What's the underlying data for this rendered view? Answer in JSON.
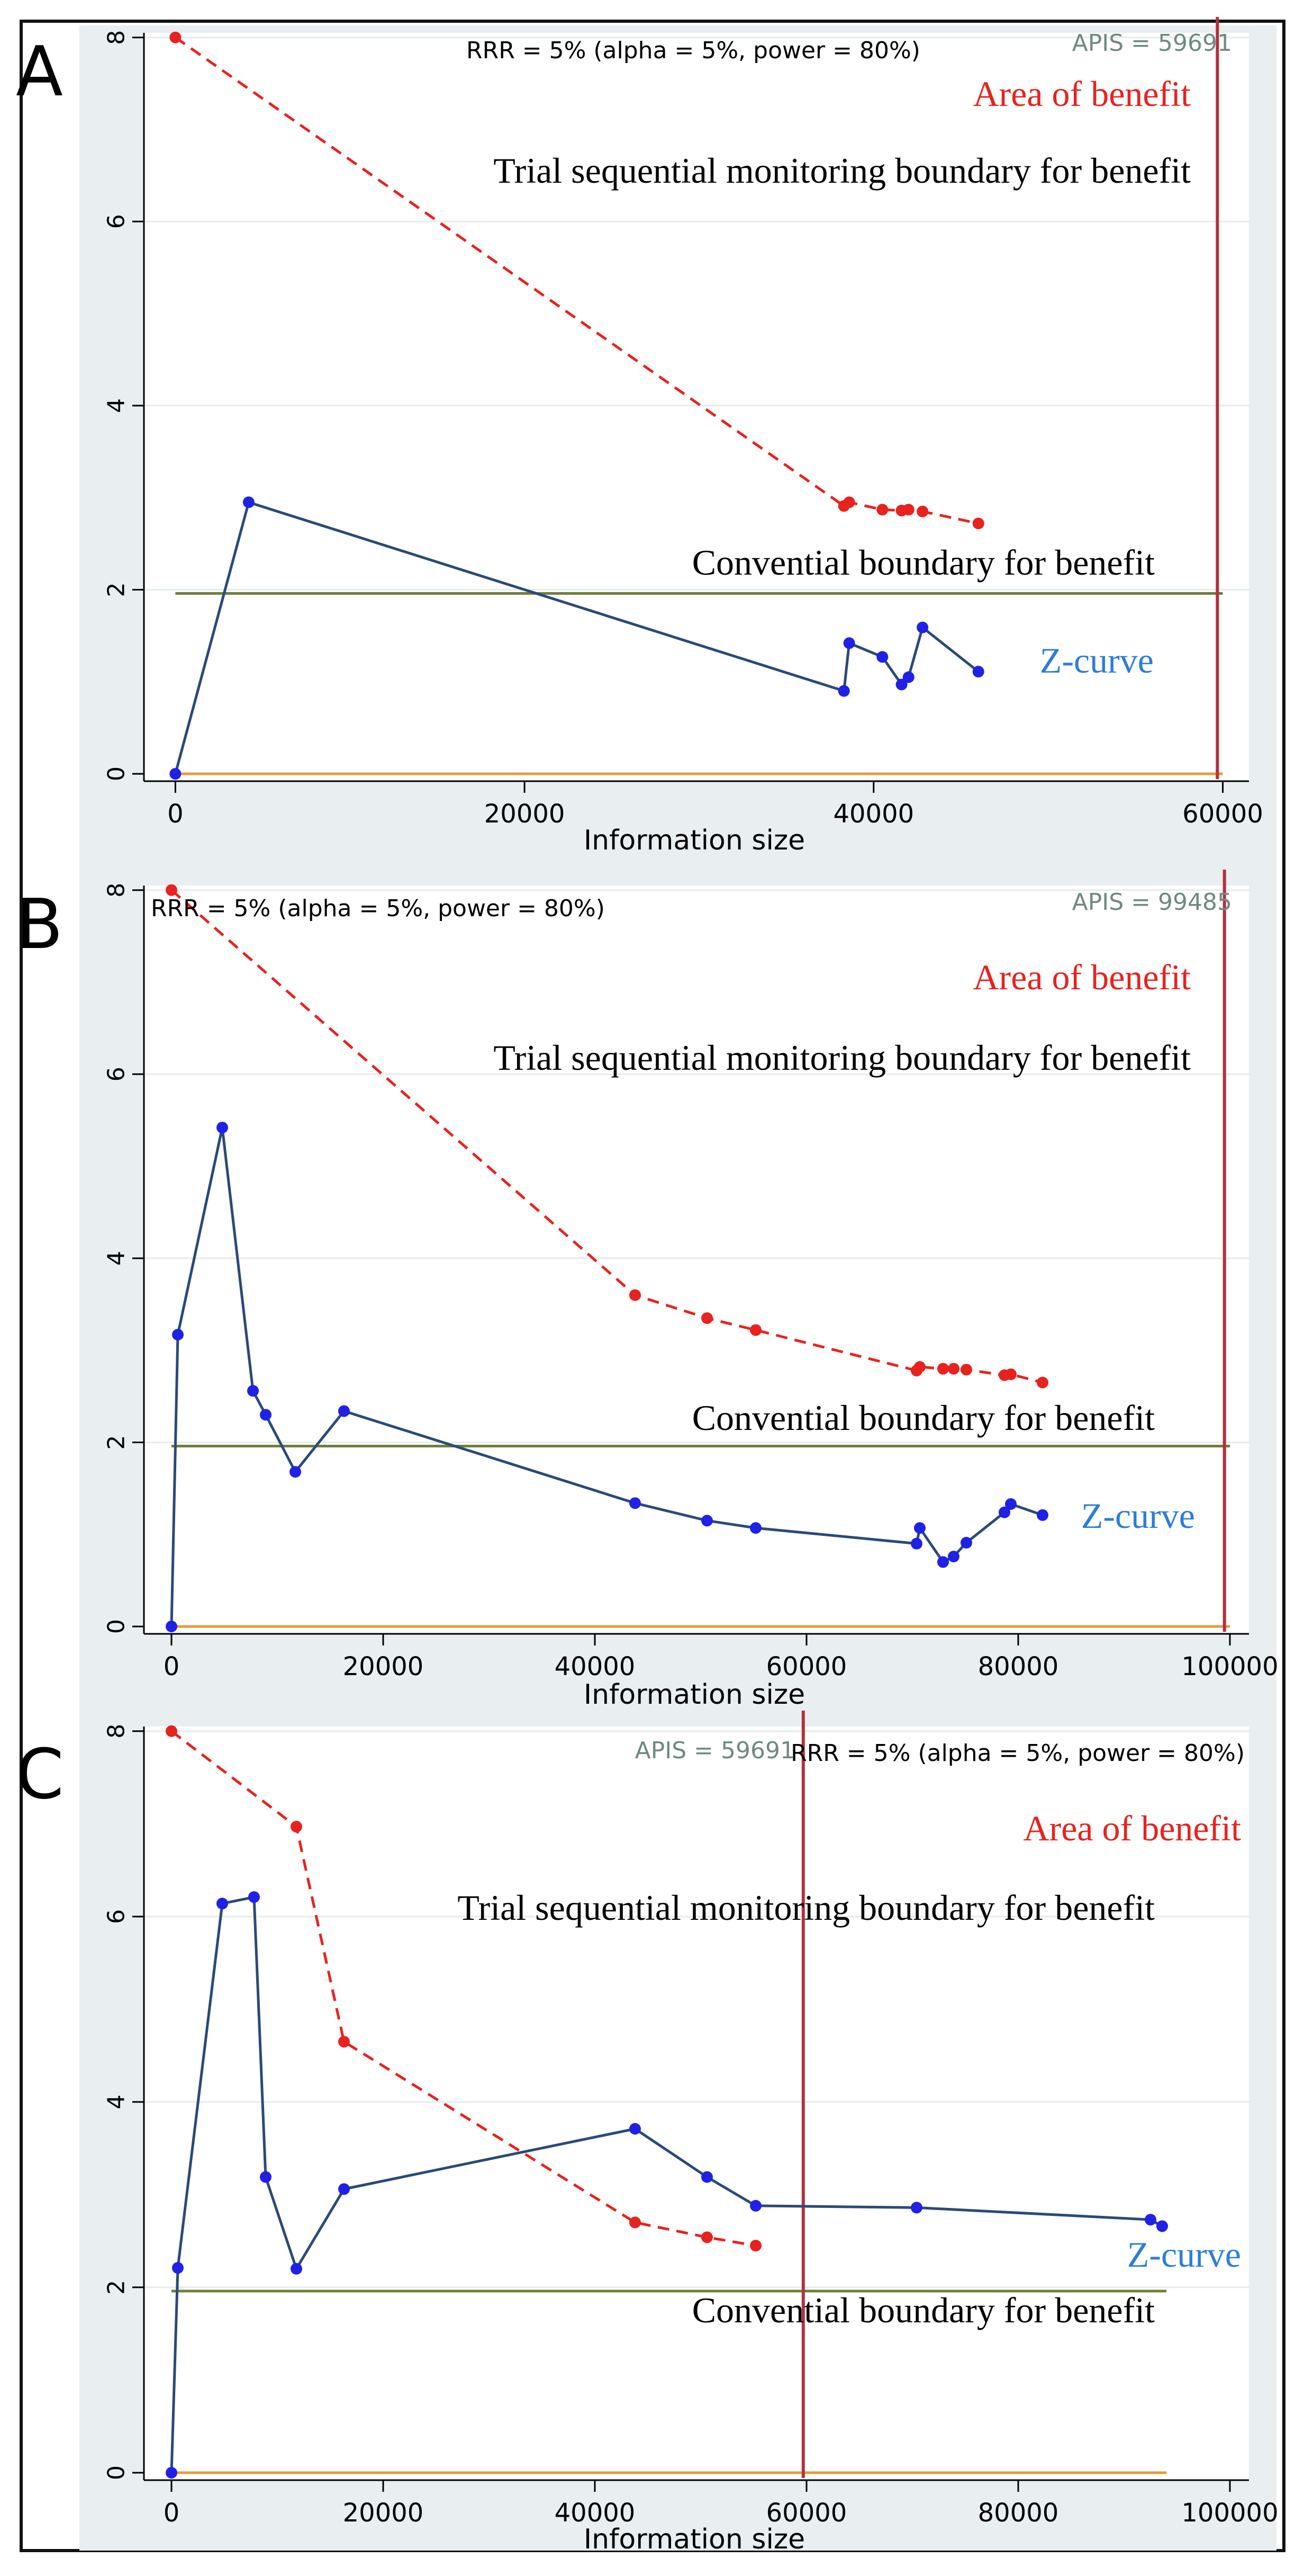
{
  "colors": {
    "background": "#ffffff",
    "plot_region": "#e9eef0",
    "plot_bg": "#ffffff",
    "gridline": "#e6ecee",
    "frame": "#111111",
    "tsmb": "#e8221f",
    "zcurve_line": "#2a4a78",
    "zcurve_point": "#1f22e6",
    "conventional": "#6f7f3a",
    "zero_line": "#e99a3b",
    "apis_line": "#b5303c",
    "area_text": "#e8221f",
    "zcurve_text": "#2c7ed8",
    "apis_text": "#6f8a80",
    "panel_letter": "#000000"
  },
  "chart_data": [
    {
      "type": "line",
      "panel_label": "A",
      "xlabel": "Information size",
      "xlim": [
        -1800,
        61500
      ],
      "ylim": [
        -0.08,
        8.05
      ],
      "xticks": [
        0,
        20000,
        40000,
        60000
      ],
      "xtick_labels": [
        "0",
        "20000",
        "40000",
        "60000"
      ],
      "yticks": [
        0,
        2,
        4,
        6,
        8
      ],
      "ytick_labels": [
        "0",
        "2",
        "4",
        "6",
        "8"
      ],
      "apis_label": "APIS = 59691",
      "apis_value": 59691,
      "rrr_label": "RRR = 5% (alpha = 5%, power = 80%)",
      "area_label": "Area of benefit",
      "tsmb_label": "Trial sequential monitoring boundary for benefit",
      "conventional_label": "Convential boundary for benefit",
      "zcurve_label": "Z-curve",
      "conventional_value": 1.96,
      "conventional_xrange": [
        0,
        60000
      ],
      "zero_xrange": [
        0,
        60000
      ],
      "series": [
        {
          "name": "Trial sequential monitoring boundary for benefit",
          "x": [
            0,
            38300,
            38600,
            40500,
            41600,
            42000,
            42800,
            46000
          ],
          "y": [
            8.0,
            2.91,
            2.95,
            2.87,
            2.86,
            2.87,
            2.85,
            2.72
          ]
        },
        {
          "name": "Z-curve",
          "x": [
            0,
            4200,
            38300,
            38600,
            40500,
            41600,
            42000,
            42800,
            46000
          ],
          "y": [
            0,
            2.95,
            0.9,
            1.42,
            1.27,
            0.97,
            1.05,
            1.59,
            1.11
          ]
        }
      ]
    },
    {
      "type": "line",
      "panel_label": "B",
      "xlabel": "Information size",
      "xlim": [
        -2600,
        101800
      ],
      "ylim": [
        -0.08,
        8.05
      ],
      "xticks": [
        0,
        20000,
        40000,
        60000,
        80000,
        100000
      ],
      "xtick_labels": [
        "0",
        "20000",
        "40000",
        "60000",
        "80000",
        "100000"
      ],
      "yticks": [
        0,
        2,
        4,
        6,
        8
      ],
      "ytick_labels": [
        "0",
        "2",
        "4",
        "6",
        "8"
      ],
      "apis_label": "APIS = 99485",
      "apis_value": 99485,
      "rrr_label": "RRR = 5% (alpha = 5%, power = 80%)",
      "area_label": "Area of benefit",
      "tsmb_label": "Trial sequential monitoring boundary for benefit",
      "conventional_label": "Convential boundary for benefit",
      "zcurve_label": "Z-curve",
      "conventional_value": 1.96,
      "conventional_xrange": [
        0,
        100000
      ],
      "zero_xrange": [
        0,
        100000
      ],
      "series": [
        {
          "name": "Trial sequential monitoring boundary for benefit",
          "x": [
            0,
            43800,
            50600,
            55200,
            70400,
            70700,
            72900,
            73900,
            75100,
            78700,
            79300,
            82300
          ],
          "y": [
            8.0,
            3.6,
            3.35,
            3.22,
            2.78,
            2.82,
            2.8,
            2.8,
            2.79,
            2.73,
            2.74,
            2.65
          ]
        },
        {
          "name": "Z-curve",
          "x": [
            0,
            600,
            4800,
            7700,
            8900,
            11700,
            16300,
            43800,
            50600,
            55200,
            70400,
            70700,
            72900,
            73900,
            75100,
            78700,
            79300,
            82300
          ],
          "y": [
            0,
            3.17,
            5.42,
            2.56,
            2.3,
            1.68,
            2.34,
            1.34,
            1.15,
            1.07,
            0.9,
            1.07,
            0.7,
            0.76,
            0.91,
            1.24,
            1.33,
            1.21
          ]
        }
      ]
    },
    {
      "type": "line",
      "panel_label": "C",
      "xlabel": "Information size",
      "xlim": [
        -2600,
        101800
      ],
      "ylim": [
        -0.08,
        8.05
      ],
      "xticks": [
        0,
        20000,
        40000,
        60000,
        80000,
        100000
      ],
      "xtick_labels": [
        "0",
        "20000",
        "40000",
        "60000",
        "80000",
        "100000"
      ],
      "yticks": [
        0,
        2,
        4,
        6,
        8
      ],
      "ytick_labels": [
        "0",
        "2",
        "4",
        "6",
        "8"
      ],
      "apis_label": "APIS = 59691",
      "apis_value": 59691,
      "rrr_label": "RRR = 5% (alpha = 5%, power = 80%)",
      "area_label": "Area of benefit",
      "tsmb_label": "Trial sequential monitoring boundary for benefit",
      "conventional_label": "Convential boundary for benefit",
      "zcurve_label": "Z-curve",
      "conventional_value": 1.96,
      "conventional_xrange": [
        0,
        94000
      ],
      "zero_xrange": [
        0,
        94000
      ],
      "series": [
        {
          "name": "Trial sequential monitoring boundary for benefit",
          "x": [
            0,
            11800,
            16300,
            43800,
            50600,
            55200
          ],
          "y": [
            8.0,
            6.97,
            4.65,
            2.7,
            2.54,
            2.45
          ]
        },
        {
          "name": "Z-curve",
          "x": [
            0,
            600,
            4800,
            7800,
            8900,
            11800,
            16300,
            43800,
            50600,
            55200,
            70400,
            92500,
            93600
          ],
          "y": [
            0,
            2.21,
            6.14,
            6.21,
            3.19,
            2.2,
            3.06,
            3.71,
            3.19,
            2.88,
            2.86,
            2.73,
            2.66
          ]
        }
      ]
    }
  ]
}
